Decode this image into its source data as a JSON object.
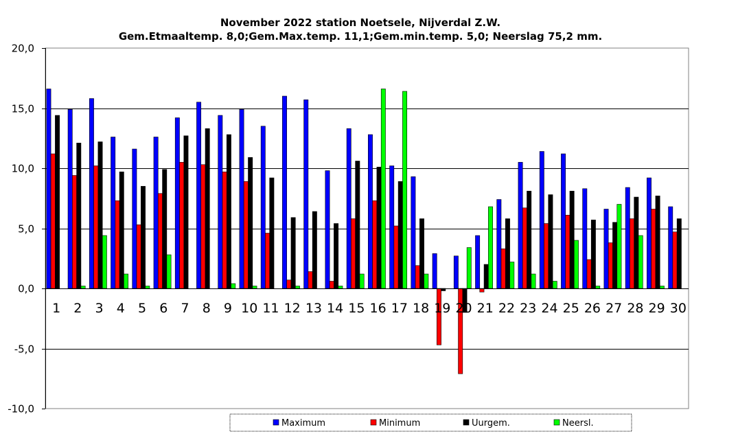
{
  "chart_data": {
    "type": "bar",
    "title": "November 2022 station Noetsele, Nijverdal Z.W.",
    "subtitle": "Gem.Etmaaltemp. 8,0;Gem.Max.temp. 11,1;Gem.min.temp. 5,0; Neerslag 75,2 mm.",
    "xlabel": "",
    "ylabel": "",
    "ylim": [
      -10,
      20
    ],
    "yticks": [
      20,
      15,
      10,
      5,
      0,
      -5,
      -10
    ],
    "ytick_labels": [
      "20,0",
      "15,0",
      "10,0",
      "5,0",
      "0,0",
      "-5,0",
      "-10,0"
    ],
    "grid": true,
    "legend_position": "bottom",
    "categories": [
      "1",
      "2",
      "3",
      "4",
      "5",
      "6",
      "7",
      "8",
      "9",
      "10",
      "11",
      "12",
      "13",
      "14",
      "15",
      "16",
      "17",
      "18",
      "19",
      "20",
      "21",
      "22",
      "23",
      "24",
      "25",
      "26",
      "27",
      "28",
      "29",
      "30"
    ],
    "series": [
      {
        "name": "Maximum",
        "color": "#0000ff",
        "values": [
          16.6,
          14.9,
          15.8,
          12.6,
          11.6,
          12.6,
          14.2,
          15.5,
          14.4,
          14.9,
          13.5,
          16.0,
          15.7,
          9.8,
          13.3,
          12.8,
          10.2,
          9.3,
          2.9,
          2.7,
          4.4,
          7.4,
          10.5,
          11.4,
          11.2,
          8.3,
          6.6,
          8.4,
          9.2,
          6.8
        ]
      },
      {
        "name": "Minimum",
        "color": "#ff0000",
        "values": [
          11.2,
          9.4,
          10.2,
          7.3,
          5.3,
          7.9,
          10.5,
          10.3,
          9.7,
          8.9,
          4.6,
          0.7,
          1.4,
          0.6,
          5.8,
          7.3,
          5.2,
          1.9,
          -4.7,
          -7.1,
          -0.3,
          3.3,
          6.7,
          5.4,
          6.1,
          2.4,
          3.8,
          5.8,
          6.6,
          4.7
        ]
      },
      {
        "name": "Uurgem.",
        "color": "#000000",
        "values": [
          14.4,
          12.1,
          12.2,
          9.7,
          8.5,
          9.9,
          12.7,
          13.3,
          12.8,
          10.9,
          9.2,
          5.9,
          6.4,
          5.4,
          10.6,
          10.1,
          8.9,
          5.8,
          -0.2,
          -2.0,
          2.0,
          5.8,
          8.1,
          7.8,
          8.1,
          5.7,
          5.5,
          7.6,
          7.7,
          5.8
        ]
      },
      {
        "name": "Neersl.",
        "color": "#00ff00",
        "values": [
          0.0,
          0.2,
          4.4,
          1.2,
          0.2,
          2.8,
          0.0,
          0.0,
          0.4,
          0.2,
          0.0,
          0.2,
          0.0,
          0.2,
          1.2,
          16.6,
          16.4,
          1.2,
          0.0,
          3.4,
          6.8,
          2.2,
          1.2,
          0.6,
          4.0,
          0.2,
          7.0,
          4.4,
          0.2,
          0.0
        ]
      }
    ]
  }
}
